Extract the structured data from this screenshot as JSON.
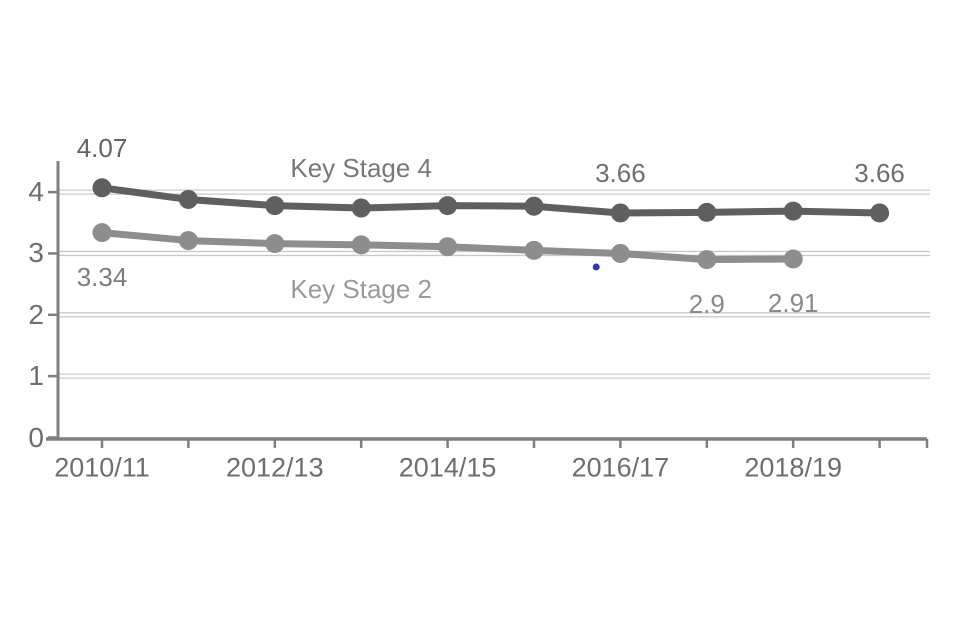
{
  "page": {
    "background_color": "#ffffff"
  },
  "chart_data": {
    "type": "line",
    "title": "",
    "xlabel": "",
    "ylabel": "",
    "legend_position": "inline-labels",
    "grid": "horizontal-double-lines",
    "ylim": [
      0,
      4.5
    ],
    "y_ticks": [
      "0",
      "1",
      "2",
      "3",
      "4"
    ],
    "categories": [
      "2010/11",
      "2011/12",
      "2012/13",
      "2013/14",
      "2014/15",
      "2015/16",
      "2016/17",
      "2017/18",
      "2018/19",
      "2019/20"
    ],
    "x_tick_labels": [
      {
        "index": 0,
        "label": "2010/11"
      },
      {
        "index": 2,
        "label": "2012/13"
      },
      {
        "index": 4,
        "label": "2014/15"
      },
      {
        "index": 6,
        "label": "2016/17"
      },
      {
        "index": 8,
        "label": "2018/19"
      }
    ],
    "series": [
      {
        "name": "Key Stage 4",
        "color": "#5f5f5f",
        "values": [
          4.07,
          3.88,
          3.78,
          3.74,
          3.78,
          3.77,
          3.66,
          3.67,
          3.69,
          3.66
        ]
      },
      {
        "name": "Key Stage 2",
        "color": "#8d8d8d",
        "values": [
          3.34,
          3.21,
          3.16,
          3.14,
          3.11,
          3.05,
          3.0,
          2.9,
          2.91
        ]
      }
    ],
    "annotations": [
      {
        "text": "4.07",
        "series": 0,
        "point": 0,
        "position": "above",
        "color": "#636363"
      },
      {
        "text": "Key Stage 4",
        "series": 0,
        "point": 3,
        "position": "above",
        "color": "#787878"
      },
      {
        "text": "3.66",
        "series": 0,
        "point": 6,
        "position": "above",
        "color": "#6f6f6f"
      },
      {
        "text": "3.66",
        "series": 0,
        "point": 9,
        "position": "above",
        "color": "#6f6f6f"
      },
      {
        "text": "3.34",
        "series": 1,
        "point": 0,
        "position": "below",
        "color": "#7d7d7d"
      },
      {
        "text": "Key Stage 2",
        "series": 1,
        "point": 3,
        "position": "below",
        "color": "#9a9a9a"
      },
      {
        "text": "2.9",
        "series": 1,
        "point": 7,
        "position": "below",
        "color": "#8a8a8a"
      },
      {
        "text": "2.91",
        "series": 1,
        "point": 8,
        "position": "below",
        "color": "#8a8a8a"
      }
    ],
    "stray_dot": {
      "x_index": 5.72,
      "value": 2.78,
      "color": "#3636b2"
    },
    "axis_color": "#7f7f7f",
    "gridline_color": "#c9c9c9"
  }
}
